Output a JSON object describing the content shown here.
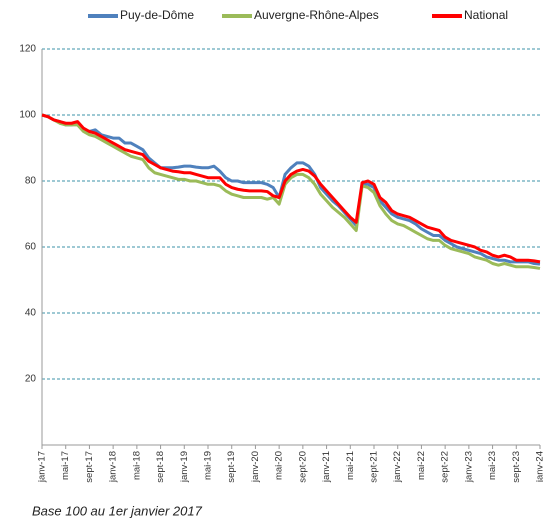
{
  "chart_data": {
    "type": "line",
    "categories": [
      "janv-17",
      null,
      null,
      null,
      "mai-17",
      null,
      null,
      null,
      "sept-17",
      null,
      null,
      null,
      "janv-18",
      null,
      null,
      null,
      "mai-18",
      null,
      null,
      null,
      "sept-18",
      null,
      null,
      null,
      "janv-19",
      null,
      null,
      null,
      "mai-19",
      null,
      null,
      null,
      "sept-19",
      null,
      null,
      null,
      "janv-20",
      null,
      null,
      null,
      "mai-20",
      null,
      null,
      null,
      "sept-20",
      null,
      null,
      null,
      "janv-21",
      null,
      null,
      null,
      "mai-21",
      null,
      null,
      null,
      "sept-21",
      null,
      null,
      null,
      "janv-22",
      null,
      null,
      null,
      "mai-22",
      null,
      null,
      null,
      "sept-22",
      null,
      null,
      null,
      "janv-23",
      null,
      null,
      null,
      "mai-23",
      null,
      null,
      null,
      "sept-23",
      null,
      null,
      null,
      "janv-24"
    ],
    "series": [
      {
        "name": "Puy-de-Dôme",
        "color": "#4f81bd",
        "values": [
          100,
          99.5,
          98.5,
          98,
          97,
          97,
          97.5,
          95.5,
          95,
          95.5,
          94,
          93.5,
          93,
          93,
          91.5,
          91.5,
          90.5,
          89.5,
          87,
          85.5,
          84,
          84,
          84,
          84.2,
          84.5,
          84.5,
          84.2,
          84,
          84,
          84.5,
          83,
          81,
          80,
          80,
          79.5,
          79.5,
          79.5,
          79.5,
          79,
          78,
          75,
          82,
          84,
          85.5,
          85.5,
          84.5,
          82,
          78,
          76,
          74,
          72.5,
          70.5,
          68.5,
          66.5,
          79,
          79,
          78,
          74,
          72,
          70,
          69,
          68.5,
          68,
          67,
          65.5,
          64.5,
          63.5,
          63.5,
          62,
          61,
          60,
          59.5,
          59,
          58.5,
          58,
          57,
          56.5,
          56,
          56,
          55.5,
          55.5,
          55.5,
          55.5,
          55,
          54.8
        ]
      },
      {
        "name": "Auvergne-Rhône-Alpes",
        "color": "#9bbb59",
        "values": [
          100,
          99.5,
          98.5,
          97.5,
          97,
          97,
          97,
          95,
          94,
          93.5,
          92.5,
          91.5,
          90.5,
          89.5,
          88.5,
          87.5,
          87,
          86.5,
          84,
          82.5,
          82,
          81.5,
          81,
          80.5,
          80.5,
          80,
          80,
          79.5,
          79,
          79,
          78.5,
          77,
          76,
          75.5,
          75,
          75,
          75,
          75,
          74.5,
          75,
          73,
          79,
          81,
          82,
          82,
          81,
          79,
          76,
          74,
          72,
          70.5,
          69,
          67,
          65,
          78.5,
          78,
          76.5,
          72.5,
          70,
          68,
          67,
          66.5,
          65.5,
          64.5,
          63.5,
          62.5,
          62,
          62,
          60.5,
          59.5,
          59,
          58.5,
          58,
          57,
          56.5,
          56,
          55,
          54.5,
          55,
          54.5,
          54,
          54,
          54,
          53.8,
          53.5
        ]
      },
      {
        "name": "National",
        "color": "#ff0000",
        "values": [
          100,
          99.5,
          98.5,
          98,
          97.5,
          97.5,
          98,
          96,
          95,
          94.5,
          93.5,
          92.5,
          91.5,
          90.5,
          89.5,
          89,
          88.5,
          88,
          86,
          85,
          84,
          83.5,
          83,
          82.8,
          82.5,
          82.5,
          82,
          81.5,
          81,
          81,
          81,
          79,
          78,
          77.5,
          77.2,
          77,
          77,
          77,
          76.8,
          75.5,
          75,
          80,
          82,
          83,
          83.5,
          83,
          81.5,
          79,
          77,
          75,
          73,
          71,
          69,
          67.5,
          79.5,
          80,
          79,
          75,
          73.5,
          71,
          70,
          69.5,
          69,
          68,
          67,
          66,
          65.5,
          65,
          63,
          62,
          61.5,
          61,
          60.5,
          60,
          59,
          58.5,
          57.5,
          57,
          57.5,
          57,
          56,
          56,
          56,
          55.8,
          55.5
        ]
      }
    ],
    "ylim": [
      0,
      120
    ],
    "yticks": [
      20,
      40,
      60,
      80,
      100,
      120
    ],
    "grid": true,
    "legend": "top",
    "annotations": [
      "Base 100 au 1er janvier 2017"
    ]
  }
}
